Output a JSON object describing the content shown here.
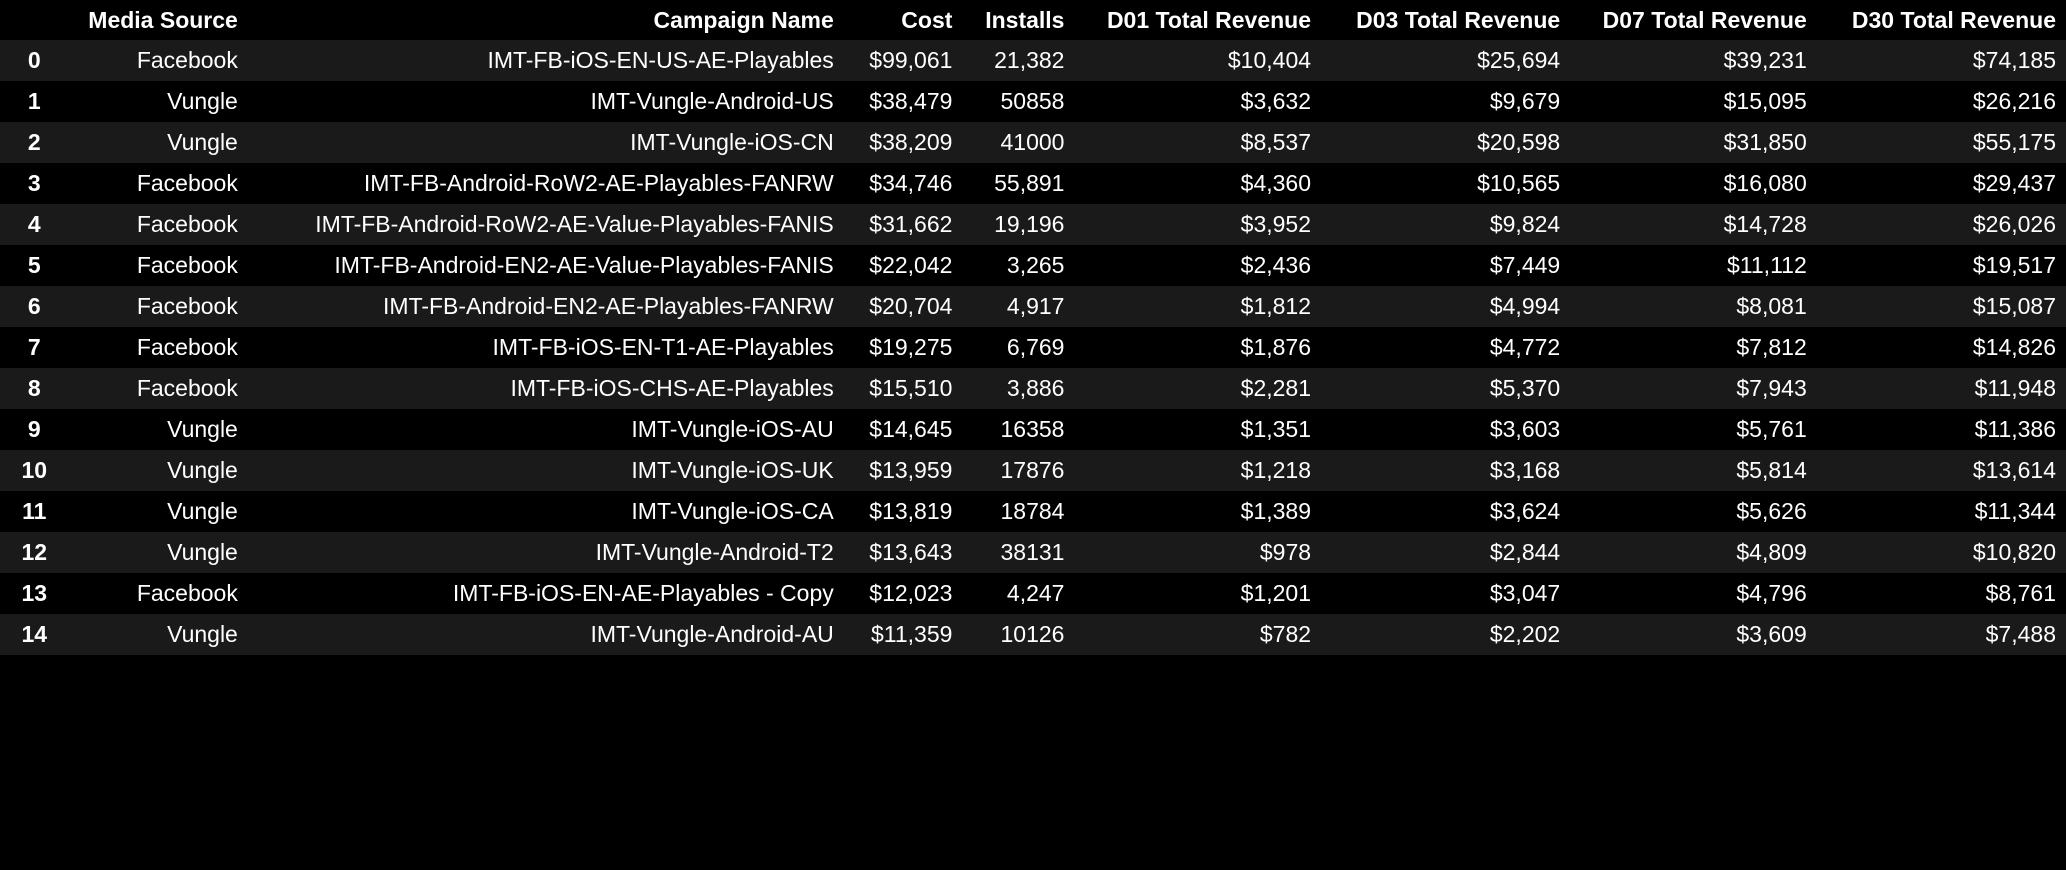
{
  "table": {
    "columns": [
      "Media Source",
      "Campaign Name",
      "Cost",
      "Installs",
      "D01 Total Revenue",
      "D03 Total Revenue",
      "D07 Total Revenue",
      "D30 Total Revenue"
    ],
    "rows": [
      {
        "index": "0",
        "source": "Facebook",
        "campaign": "IMT-FB-iOS-EN-US-AE-Playables",
        "cost": "$99,061",
        "installs": "21,382",
        "d01": "$10,404",
        "d03": "$25,694",
        "d07": "$39,231",
        "d30": "$74,185"
      },
      {
        "index": "1",
        "source": "Vungle",
        "campaign": "IMT-Vungle-Android-US",
        "cost": "$38,479",
        "installs": "50858",
        "d01": "$3,632",
        "d03": "$9,679",
        "d07": "$15,095",
        "d30": "$26,216"
      },
      {
        "index": "2",
        "source": "Vungle",
        "campaign": "IMT-Vungle-iOS-CN",
        "cost": "$38,209",
        "installs": "41000",
        "d01": "$8,537",
        "d03": "$20,598",
        "d07": "$31,850",
        "d30": "$55,175"
      },
      {
        "index": "3",
        "source": "Facebook",
        "campaign": "IMT-FB-Android-RoW2-AE-Playables-FANRW",
        "cost": "$34,746",
        "installs": "55,891",
        "d01": "$4,360",
        "d03": "$10,565",
        "d07": "$16,080",
        "d30": "$29,437"
      },
      {
        "index": "4",
        "source": "Facebook",
        "campaign": "IMT-FB-Android-RoW2-AE-Value-Playables-FANIS",
        "cost": "$31,662",
        "installs": "19,196",
        "d01": "$3,952",
        "d03": "$9,824",
        "d07": "$14,728",
        "d30": "$26,026"
      },
      {
        "index": "5",
        "source": "Facebook",
        "campaign": "IMT-FB-Android-EN2-AE-Value-Playables-FANIS",
        "cost": "$22,042",
        "installs": "3,265",
        "d01": "$2,436",
        "d03": "$7,449",
        "d07": "$11,112",
        "d30": "$19,517"
      },
      {
        "index": "6",
        "source": "Facebook",
        "campaign": "IMT-FB-Android-EN2-AE-Playables-FANRW",
        "cost": "$20,704",
        "installs": "4,917",
        "d01": "$1,812",
        "d03": "$4,994",
        "d07": "$8,081",
        "d30": "$15,087"
      },
      {
        "index": "7",
        "source": "Facebook",
        "campaign": "IMT-FB-iOS-EN-T1-AE-Playables",
        "cost": "$19,275",
        "installs": "6,769",
        "d01": "$1,876",
        "d03": "$4,772",
        "d07": "$7,812",
        "d30": "$14,826"
      },
      {
        "index": "8",
        "source": "Facebook",
        "campaign": "IMT-FB-iOS-CHS-AE-Playables",
        "cost": "$15,510",
        "installs": "3,886",
        "d01": "$2,281",
        "d03": "$5,370",
        "d07": "$7,943",
        "d30": "$11,948"
      },
      {
        "index": "9",
        "source": "Vungle",
        "campaign": "IMT-Vungle-iOS-AU",
        "cost": "$14,645",
        "installs": "16358",
        "d01": "$1,351",
        "d03": "$3,603",
        "d07": "$5,761",
        "d30": "$11,386"
      },
      {
        "index": "10",
        "source": "Vungle",
        "campaign": "IMT-Vungle-iOS-UK",
        "cost": "$13,959",
        "installs": "17876",
        "d01": "$1,218",
        "d03": "$3,168",
        "d07": "$5,814",
        "d30": "$13,614"
      },
      {
        "index": "11",
        "source": "Vungle",
        "campaign": "IMT-Vungle-iOS-CA",
        "cost": "$13,819",
        "installs": "18784",
        "d01": "$1,389",
        "d03": "$3,624",
        "d07": "$5,626",
        "d30": "$11,344"
      },
      {
        "index": "12",
        "source": "Vungle",
        "campaign": "IMT-Vungle-Android-T2",
        "cost": "$13,643",
        "installs": "38131",
        "d01": "$978",
        "d03": "$2,844",
        "d07": "$4,809",
        "d30": "$10,820"
      },
      {
        "index": "13",
        "source": "Facebook",
        "campaign": "IMT-FB-iOS-EN-AE-Playables - Copy",
        "cost": "$12,023",
        "installs": "4,247",
        "d01": "$1,201",
        "d03": "$3,047",
        "d07": "$4,796",
        "d30": "$8,761"
      },
      {
        "index": "14",
        "source": "Vungle",
        "campaign": "IMT-Vungle-Android-AU",
        "cost": "$11,359",
        "installs": "10126",
        "d01": "$782",
        "d03": "$2,202",
        "d07": "$3,609",
        "d30": "$7,488"
      }
    ]
  },
  "colors": {
    "background": "#000000",
    "row_stripe": "#1a1a1a",
    "text": "#ffffff"
  }
}
